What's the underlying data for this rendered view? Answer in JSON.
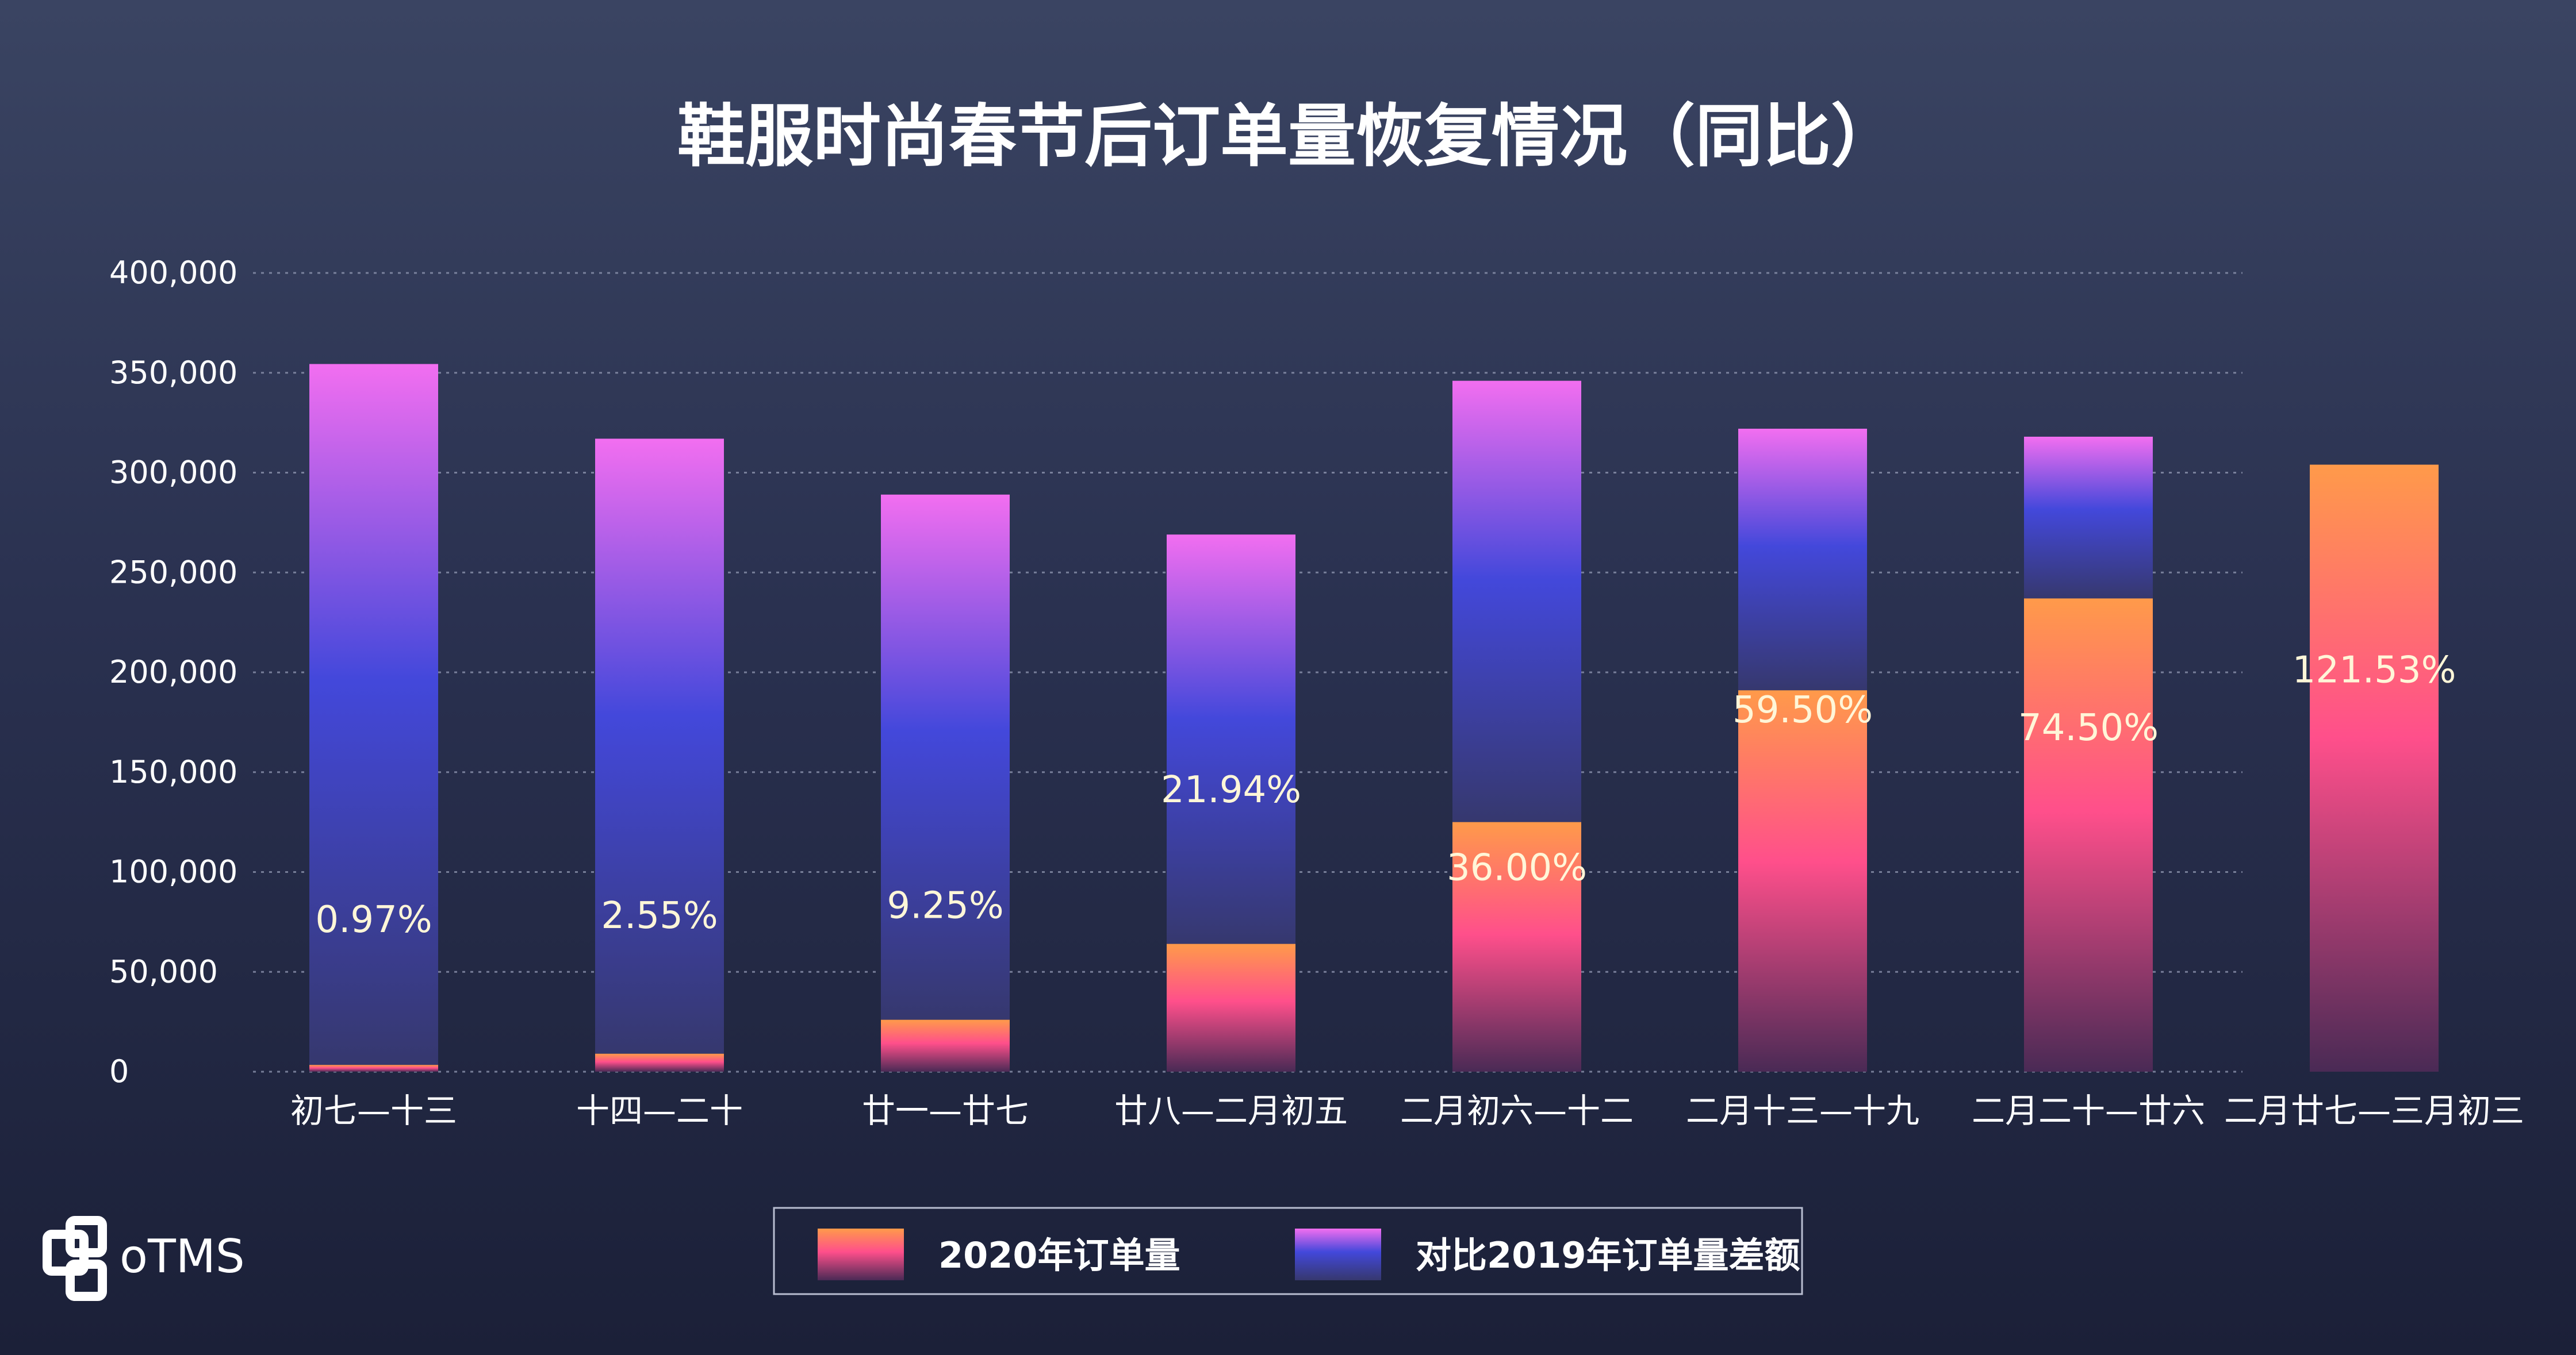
{
  "brand": {
    "name": "oTMS"
  },
  "colors": {
    "series_2020_top": "#ff9a4a",
    "series_2020_mid": "#ff4f8b",
    "series_2020_bottom": "#4a2a55",
    "series_diff_top": "#f26ef0",
    "series_diff_mid": "#4348db",
    "series_diff_bottom": "#36386e",
    "pct_label": "#fff6d8"
  },
  "chart_data": {
    "type": "bar",
    "stacked": true,
    "title": "鞋服时尚春节后订单量恢复情况（同比）",
    "categories": [
      "初七—十三",
      "十四—二十",
      "廿一—廿七",
      "廿八—二月初五",
      "二月初六—十二",
      "二月十三—十九",
      "二月二十—廿六",
      "二月廿七—三月初三"
    ],
    "series": [
      {
        "name": "2020年订单量",
        "values": [
          3400,
          9000,
          26000,
          64000,
          125000,
          191000,
          237000,
          304000
        ]
      },
      {
        "name": "对比2019年订单量差额",
        "values": [
          351000,
          308000,
          263000,
          205000,
          221000,
          131000,
          81000,
          0
        ]
      }
    ],
    "percent_labels": [
      "0.97%",
      "2.55%",
      "9.25%",
      "21.94%",
      "36.00%",
      "59.50%",
      "74.50%",
      "121.53%"
    ],
    "percent_label_values": [
      70000,
      72000,
      77000,
      135000,
      96000,
      175000,
      166000,
      195000
    ],
    "yticks": [
      "0",
      "50,000",
      "100,000",
      "150,000",
      "200,000",
      "250,000",
      "300,000",
      "350,000",
      "400,000"
    ],
    "ylim": [
      0,
      400000
    ],
    "grid": true,
    "legend_position": "bottom-center",
    "xlabel": "",
    "ylabel": ""
  }
}
